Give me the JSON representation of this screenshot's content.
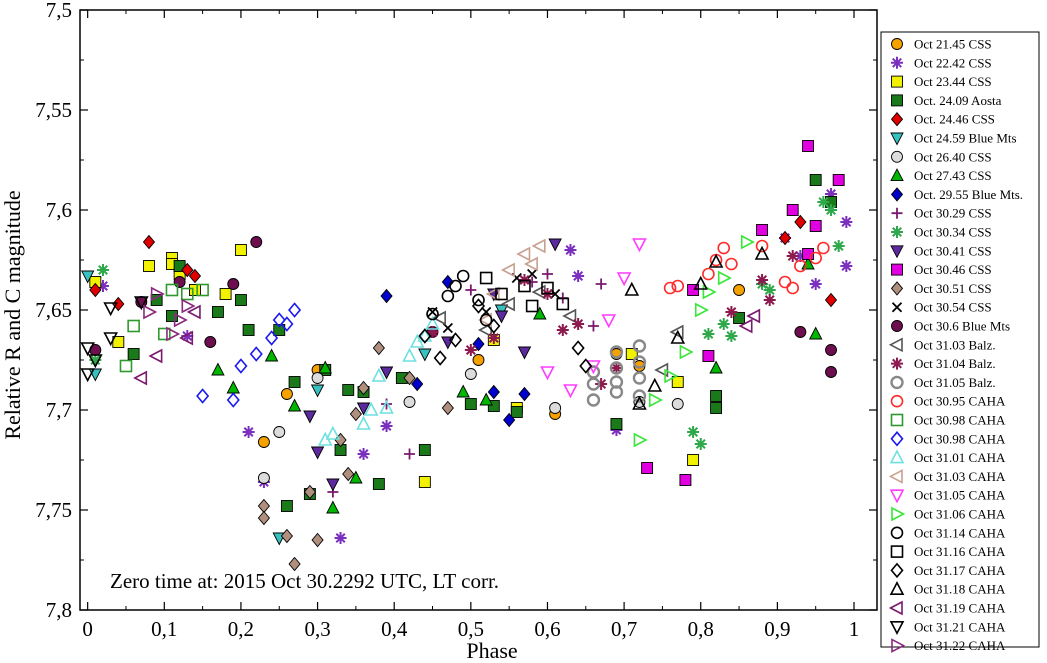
{
  "chart_data": {
    "type": "scatter",
    "title": "",
    "xlabel": "Phase",
    "ylabel": "Relative R and C magnitude",
    "xlim": [
      -0.01,
      1.03
    ],
    "ylim": [
      7.5,
      7.8
    ],
    "y_inverted": true,
    "grid": false,
    "legend_placement": "right",
    "x_ticks": [
      0,
      0.1,
      0.2,
      0.3,
      0.4,
      0.5,
      0.6,
      0.7,
      0.8,
      0.9,
      1
    ],
    "x_tick_labels": [
      "0",
      "0,1",
      "0,2",
      "0,3",
      "0,4",
      "0,5",
      "0,6",
      "0,7",
      "0,8",
      "0,9",
      "1"
    ],
    "y_ticks": [
      7.5,
      7.55,
      7.6,
      7.65,
      7.7,
      7.75,
      7.8
    ],
    "y_tick_labels": [
      "7,5",
      "7,55",
      "7,6",
      "7,65",
      "7,7",
      "7,75",
      "7,8"
    ],
    "annotation": "Zero time at: 2015 Oct 30.2292 UTC, LT corr.",
    "series": [
      {
        "name": "Oct 21.45 CSS",
        "marker": "circle",
        "color": "#f5a100",
        "filled": true,
        "x": [
          0.23,
          0.26,
          0.3,
          0.51,
          0.61,
          0.69,
          0.72,
          0.85
        ],
        "y": [
          7.716,
          7.692,
          7.68,
          7.675,
          7.702,
          7.672,
          7.678,
          7.64
        ]
      },
      {
        "name": "Oct 22.42 CSS",
        "marker": "star",
        "color": "#7b2fbe",
        "filled": true,
        "x": [
          0.02,
          0.13,
          0.21,
          0.23,
          0.33,
          0.36,
          0.39,
          0.63,
          0.64,
          0.69,
          0.91,
          0.93,
          0.95,
          0.97,
          0.99,
          0.99
        ],
        "y": [
          7.638,
          7.663,
          7.711,
          7.736,
          7.764,
          7.722,
          7.708,
          7.62,
          7.633,
          7.71,
          7.614,
          7.623,
          7.637,
          7.592,
          7.606,
          7.628
        ]
      },
      {
        "name": "Oct 23.44 CSS",
        "marker": "square",
        "color": "#f2f200",
        "filled": true,
        "x": [
          0.01,
          0.04,
          0.08,
          0.11,
          0.11,
          0.12,
          0.14,
          0.18,
          0.2,
          0.44,
          0.53,
          0.56,
          0.71,
          0.77,
          0.79
        ],
        "y": [
          7.636,
          7.666,
          7.628,
          7.624,
          7.627,
          7.632,
          7.64,
          7.642,
          7.62,
          7.736,
          7.665,
          7.699,
          7.672,
          7.686,
          7.725
        ]
      },
      {
        "name": "Oct. 24.09 Aosta",
        "marker": "square",
        "color": "#1a7a1a",
        "filled": true,
        "x": [
          0.06,
          0.09,
          0.11,
          0.12,
          0.17,
          0.2,
          0.21,
          0.25,
          0.26,
          0.27,
          0.29,
          0.31,
          0.33,
          0.34,
          0.36,
          0.38,
          0.41,
          0.44,
          0.5,
          0.53,
          0.56,
          0.69,
          0.82,
          0.82,
          0.85,
          0.95,
          0.97
        ],
        "y": [
          7.672,
          7.645,
          7.653,
          7.628,
          7.651,
          7.645,
          7.66,
          7.66,
          7.748,
          7.686,
          7.742,
          7.68,
          7.72,
          7.69,
          7.691,
          7.737,
          7.684,
          7.72,
          7.697,
          7.698,
          7.701,
          7.707,
          7.693,
          7.699,
          7.654,
          7.585,
          7.596
        ]
      },
      {
        "name": "Oct. 24.46 CSS",
        "marker": "diamond",
        "color": "#e10000",
        "filled": true,
        "x": [
          0.01,
          0.04,
          0.08,
          0.13,
          0.14,
          0.91,
          0.93,
          0.97
        ],
        "y": [
          7.64,
          7.647,
          7.616,
          7.63,
          7.633,
          7.614,
          7.606,
          7.645
        ]
      },
      {
        "name": "Oct 24.59 Blue Mts",
        "marker": "triangle-down",
        "color": "#38c1c1",
        "filled": true,
        "x": [
          0.0,
          0.01,
          0.25,
          0.3,
          0.44,
          0.54
        ],
        "y": [
          7.633,
          7.682,
          7.764,
          7.69,
          7.672,
          7.65
        ]
      },
      {
        "name": "Oct 26.40 CSS",
        "marker": "circle",
        "color": "#dcdcdc",
        "filled": true,
        "x": [
          0.23,
          0.25,
          0.3,
          0.42,
          0.5,
          0.61,
          0.72,
          0.77
        ],
        "y": [
          7.734,
          7.711,
          7.684,
          7.696,
          7.682,
          7.699,
          7.696,
          7.697
        ]
      },
      {
        "name": "Oct 27.43 CSS",
        "marker": "triangle-up",
        "color": "#00b700",
        "filled": true,
        "x": [
          0.17,
          0.19,
          0.24,
          0.27,
          0.31,
          0.32,
          0.35,
          0.49,
          0.52,
          0.59,
          0.82,
          0.94,
          0.95
        ],
        "y": [
          7.68,
          7.689,
          7.673,
          7.698,
          7.679,
          7.749,
          7.734,
          7.691,
          7.695,
          7.652,
          7.679,
          7.627,
          7.662
        ]
      },
      {
        "name": "Oct. 29.55 Blue Mts.",
        "marker": "diamond",
        "color": "#0000cc",
        "filled": true,
        "x": [
          0.39,
          0.43,
          0.47,
          0.51,
          0.53,
          0.55,
          0.57
        ],
        "y": [
          7.643,
          7.687,
          7.636,
          7.667,
          7.691,
          7.705,
          7.692
        ]
      },
      {
        "name": "Oct 30.29 CSS",
        "marker": "plus",
        "color": "#7a1a6e",
        "filled": true,
        "x": [
          0.32,
          0.39,
          0.42,
          0.5,
          0.58,
          0.6,
          0.62,
          0.66,
          0.67
        ],
        "y": [
          7.741,
          7.697,
          7.722,
          7.64,
          7.636,
          7.632,
          7.644,
          7.658,
          7.637
        ]
      },
      {
        "name": "Oct 30.34 CSS",
        "marker": "star",
        "color": "#2ea84a",
        "filled": true,
        "x": [
          0.01,
          0.02,
          0.79,
          0.8,
          0.81,
          0.83,
          0.84,
          0.88,
          0.89,
          0.96,
          0.97,
          0.98
        ],
        "y": [
          7.675,
          7.63,
          7.711,
          7.717,
          7.662,
          7.657,
          7.663,
          7.637,
          7.64,
          7.596,
          7.6,
          7.618
        ]
      },
      {
        "name": "Oct 30.41 CSS",
        "marker": "triangle-down",
        "color": "#5c2a9e",
        "filled": true,
        "x": [
          0.29,
          0.3,
          0.32,
          0.36,
          0.39,
          0.47,
          0.53,
          0.54,
          0.57,
          0.61
        ],
        "y": [
          7.703,
          7.721,
          7.737,
          7.699,
          7.681,
          7.666,
          7.642,
          7.653,
          7.671,
          7.617
        ]
      },
      {
        "name": "Oct 30.46 CSS",
        "marker": "square",
        "color": "#e000e0",
        "filled": true,
        "x": [
          0.73,
          0.78,
          0.79,
          0.81,
          0.88,
          0.92,
          0.94,
          0.94,
          0.95,
          0.98
        ],
        "y": [
          7.729,
          7.735,
          7.64,
          7.673,
          7.61,
          7.6,
          7.622,
          7.568,
          7.608,
          7.585
        ]
      },
      {
        "name": "Oct 30.51 CSS",
        "marker": "diamond",
        "color": "#b08f7e",
        "filled": true,
        "x": [
          0.23,
          0.23,
          0.26,
          0.27,
          0.29,
          0.3,
          0.33,
          0.34,
          0.35,
          0.36,
          0.38,
          0.42,
          0.47
        ],
        "y": [
          7.748,
          7.754,
          7.763,
          7.777,
          7.741,
          7.765,
          7.715,
          7.732,
          7.702,
          7.689,
          7.669,
          7.684,
          7.699
        ]
      },
      {
        "name": "Oct 30.54 CSS",
        "marker": "cross",
        "color": "#000000",
        "filled": true,
        "x": [
          0.45,
          0.47,
          0.52,
          0.56,
          0.58,
          0.61
        ],
        "y": [
          7.651,
          7.659,
          7.651,
          7.634,
          7.632,
          7.642
        ]
      },
      {
        "name": "Oct 30.6 Blue Mts",
        "marker": "circle",
        "color": "#6d0e4f",
        "filled": true,
        "x": [
          0.01,
          0.07,
          0.12,
          0.16,
          0.19,
          0.22,
          0.45,
          0.93,
          0.97,
          0.97
        ],
        "y": [
          7.67,
          7.646,
          7.636,
          7.666,
          7.637,
          7.616,
          7.661,
          7.661,
          7.67,
          7.681
        ]
      },
      {
        "name": "Oct 31.03 Balz.",
        "marker": "triangle-left",
        "color": "#555555",
        "filled": false,
        "x": [
          0.46,
          0.52,
          0.55,
          0.59,
          0.63,
          0.75,
          0.77
        ],
        "y": [
          7.654,
          7.66,
          7.647,
          7.641,
          7.653,
          7.68,
          7.661
        ]
      },
      {
        "name": "Oct 31.04 Balz.",
        "marker": "star",
        "color": "#8c1a4e",
        "filled": true,
        "x": [
          0.45,
          0.5,
          0.53,
          0.57,
          0.6,
          0.62,
          0.64,
          0.67,
          0.69,
          0.84,
          0.88,
          0.89,
          0.92
        ],
        "y": [
          7.661,
          7.67,
          7.664,
          7.635,
          7.642,
          7.66,
          7.657,
          7.687,
          7.679,
          7.651,
          7.635,
          7.645,
          7.623
        ]
      },
      {
        "name": "Oct 31.05 Balz.",
        "marker": "circle",
        "color": "#888888",
        "filled": false,
        "thick": true,
        "x": [
          0.66,
          0.66,
          0.66,
          0.69,
          0.69,
          0.69,
          0.69,
          0.72,
          0.72,
          0.72,
          0.72
        ],
        "y": [
          7.681,
          7.687,
          7.695,
          7.671,
          7.679,
          7.686,
          7.691,
          7.668,
          7.676,
          7.684,
          7.693
        ]
      },
      {
        "name": "Oct 30.95 CAHA",
        "marker": "circle",
        "color": "#ff2a2a",
        "filled": false,
        "x": [
          0.76,
          0.77,
          0.81,
          0.82,
          0.83,
          0.84,
          0.88,
          0.91,
          0.92,
          0.93,
          0.95,
          0.96
        ],
        "y": [
          7.639,
          7.638,
          7.632,
          7.625,
          7.619,
          7.627,
          7.618,
          7.636,
          7.639,
          7.628,
          7.624,
          7.619
        ]
      },
      {
        "name": "Oct 30.98 CAHA",
        "marker": "square",
        "color": "#2e9a2e",
        "filled": false,
        "x": [
          0.05,
          0.06,
          0.1,
          0.11,
          0.13,
          0.15
        ],
        "y": [
          7.678,
          7.658,
          7.662,
          7.64,
          7.642,
          7.64
        ]
      },
      {
        "name": "Oct 30.98 CAHA",
        "marker": "diamond",
        "color": "#1a1aee",
        "filled": false,
        "x": [
          0.15,
          0.19,
          0.2,
          0.22,
          0.24,
          0.25,
          0.26,
          0.27
        ],
        "y": [
          7.693,
          7.695,
          7.678,
          7.672,
          7.664,
          7.655,
          7.657,
          7.65
        ]
      },
      {
        "name": "Oct 31.01 CAHA",
        "marker": "triangle-up",
        "color": "#6ee0e0",
        "filled": false,
        "x": [
          0.31,
          0.32,
          0.36,
          0.37,
          0.38,
          0.39,
          0.42,
          0.43,
          0.44,
          0.45
        ],
        "y": [
          7.715,
          7.712,
          7.707,
          7.7,
          7.683,
          7.699,
          7.673,
          7.666,
          7.663,
          7.657
        ]
      },
      {
        "name": "Oct 31.03 CAHA",
        "marker": "triangle-left",
        "color": "#c8a090",
        "filled": false,
        "x": [
          0.52,
          0.53,
          0.55,
          0.57,
          0.58,
          0.59
        ],
        "y": [
          7.655,
          7.642,
          7.63,
          7.622,
          7.627,
          7.618
        ]
      },
      {
        "name": "Oct 31.05 CAHA",
        "marker": "triangle-down",
        "color": "#ff3cff",
        "filled": false,
        "x": [
          0.6,
          0.63,
          0.66,
          0.68,
          0.7,
          0.72
        ],
        "y": [
          7.681,
          7.69,
          7.678,
          7.655,
          7.634,
          7.617
        ]
      },
      {
        "name": "Oct 31.06 CAHA",
        "marker": "triangle-right",
        "color": "#39e639",
        "filled": false,
        "x": [
          0.72,
          0.74,
          0.76,
          0.78,
          0.8,
          0.81,
          0.83,
          0.86
        ],
        "y": [
          7.715,
          7.695,
          7.683,
          7.671,
          7.65,
          7.641,
          7.634,
          7.616
        ]
      },
      {
        "name": "Oct 31.14 CAHA",
        "marker": "circle",
        "color": "#000000",
        "filled": false,
        "x": [
          0.45,
          0.47,
          0.48,
          0.49,
          0.51,
          0.52
        ],
        "y": [
          7.652,
          7.643,
          7.638,
          7.633,
          7.645,
          7.655
        ]
      },
      {
        "name": "Oct 31.16 CAHA",
        "marker": "square",
        "color": "#000000",
        "filled": false,
        "x": [
          0.52,
          0.54,
          0.57,
          0.58,
          0.6,
          0.62
        ],
        "y": [
          7.634,
          7.642,
          7.638,
          7.648,
          7.639,
          7.647
        ]
      },
      {
        "name": "Oct 31.17 CAHA",
        "marker": "diamond",
        "color": "#000000",
        "filled": false,
        "x": [
          0.44,
          0.46,
          0.48,
          0.51,
          0.53,
          0.64,
          0.65
        ],
        "y": [
          7.663,
          7.674,
          7.665,
          7.648,
          7.658,
          7.669,
          7.678
        ]
      },
      {
        "name": "Oct 31.18 CAHA",
        "marker": "triangle-up",
        "color": "#000000",
        "filled": false,
        "x": [
          0.71,
          0.72,
          0.74,
          0.77,
          0.8,
          0.82,
          0.88
        ],
        "y": [
          7.64,
          7.697,
          7.688,
          7.664,
          7.637,
          7.626,
          7.622
        ]
      },
      {
        "name": "Oct 31.19 CAHA",
        "marker": "triangle-left",
        "color": "#7a1a6e",
        "filled": false,
        "x": [
          0.07,
          0.09,
          0.13,
          0.14,
          0.86,
          0.87
        ],
        "y": [
          7.684,
          7.673,
          7.664,
          7.651,
          7.658,
          7.653
        ]
      },
      {
        "name": "Oct 31.21 CAHA",
        "marker": "triangle-down",
        "color": "#000000",
        "filled": false,
        "x": [
          0.0,
          0.0,
          0.01,
          0.03,
          0.03,
          0.07
        ],
        "y": [
          7.682,
          7.669,
          7.675,
          7.649,
          7.664,
          7.646
        ]
      },
      {
        "name": "Oct 31.22 CAHA",
        "marker": "triangle-right",
        "color": "#8a2a7e",
        "filled": false,
        "x": [
          0.08,
          0.09,
          0.11,
          0.12,
          0.13
        ],
        "y": [
          7.651,
          7.642,
          7.662,
          7.655,
          7.648
        ]
      }
    ]
  }
}
